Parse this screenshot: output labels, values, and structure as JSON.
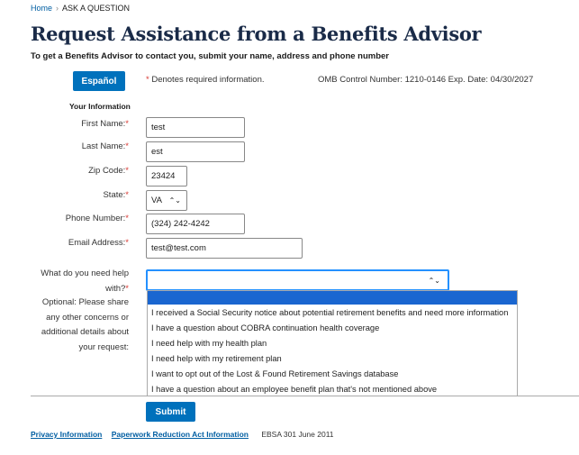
{
  "breadcrumb": {
    "home": "Home",
    "current": "ASK A QUESTION"
  },
  "title": "Request Assistance from a Benefits Advisor",
  "subtitle": "To get a Benefits Advisor to contact you, submit your name, address and phone number",
  "espanol_label": "Español",
  "required_note": "Denotes required information.",
  "asterisk": "*",
  "omb": "OMB Control Number: 1210-0146 Exp. Date: 04/30/2027",
  "section": "Your Information",
  "fields": {
    "first_name": {
      "label": "First Name:",
      "value": "test"
    },
    "last_name": {
      "label": "Last Name:",
      "value": "est"
    },
    "zip": {
      "label": "Zip Code:",
      "value": "23424"
    },
    "state": {
      "label": "State:",
      "value": "VA"
    },
    "phone": {
      "label": "Phone Number:",
      "value": "(324) 242-4242"
    },
    "email": {
      "label": "Email Address:",
      "value": "test@test.com"
    },
    "help": {
      "label1": "What do you need help",
      "label2": "with?",
      "value": ""
    },
    "optional": {
      "lines": [
        "Optional: Please share",
        "any other concerns or",
        "additional details about",
        "your request:"
      ]
    }
  },
  "help_options": [
    "",
    "I received a Social Security notice about potential retirement benefits and need more information",
    "I have a question about COBRA continuation health coverage",
    "I need help with my health plan",
    "I need help with my retirement plan",
    "I want to opt out of the Lost & Found Retirement Savings database",
    "I have a question about an employee benefit plan that's not mentioned above"
  ],
  "submit_label": "Submit",
  "footer": {
    "privacy": "Privacy Information",
    "paperwork": "Paperwork Reduction Act Information",
    "form_id": "EBSA 301 June 2011"
  },
  "colors": {
    "primary": "#0071bc",
    "title": "#1a2b48",
    "required": "#d83933",
    "highlight": "#1a66d0"
  }
}
